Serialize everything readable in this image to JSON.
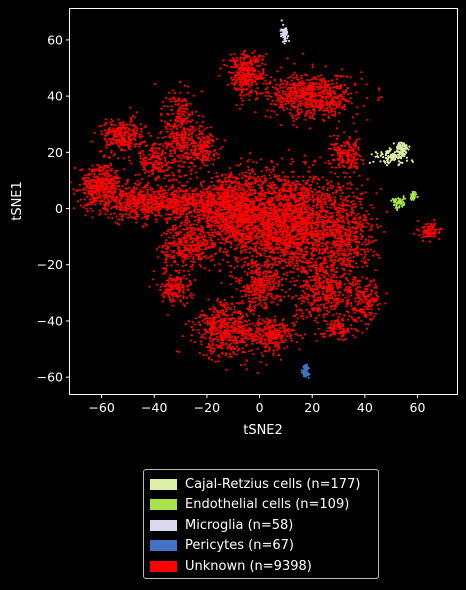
{
  "chart_data": {
    "type": "scatter",
    "title": "",
    "xlabel": "tSNE2",
    "ylabel": "tSNE1",
    "xlim": [
      -72,
      75
    ],
    "ylim": [
      -66,
      71
    ],
    "xticks": [
      -60,
      -40,
      -20,
      0,
      20,
      40,
      60
    ],
    "yticks": [
      -60,
      -40,
      -20,
      0,
      20,
      40,
      60
    ],
    "grid": false,
    "legend_position": "bottom-outside",
    "series": [
      {
        "name": "Cajal-Retzius cells (n=177)",
        "color": "#dcf0a6",
        "n": 177,
        "regions": [
          {
            "cx": 50,
            "cy": 18.5,
            "sx": 3.2,
            "sy": 1.3
          },
          {
            "cx": 54,
            "cy": 21,
            "sx": 1,
            "sy": 1.5
          }
        ]
      },
      {
        "name": "Endothelial cells (n=109)",
        "color": "#a8e34b",
        "n": 109,
        "regions": [
          {
            "cx": 53,
            "cy": 2,
            "sx": 1.2,
            "sy": 0.9
          },
          {
            "cx": 58.5,
            "cy": 4.5,
            "sx": 0.5,
            "sy": 0.6
          }
        ]
      },
      {
        "name": "Microglia (n=58)",
        "color": "#d8d8ee",
        "n": 58,
        "regions": [
          {
            "cx": 9.5,
            "cy": 62.5,
            "sx": 0.7,
            "sy": 1.5
          }
        ]
      },
      {
        "name": "Pericytes (n=67)",
        "color": "#4472c4",
        "n": 67,
        "regions": [
          {
            "cx": 17.5,
            "cy": -58,
            "sx": 0.6,
            "sy": 1.1
          }
        ]
      },
      {
        "name": "Unknown (n=9398)",
        "color": "#ff0000",
        "n": 9398,
        "regions": [
          {
            "cx": 10,
            "cy": -5,
            "sx": 12,
            "sy": 9,
            "w": 26
          },
          {
            "cx": -10,
            "cy": 0,
            "sx": 8,
            "sy": 6,
            "w": 10
          },
          {
            "cx": -30,
            "cy": 2,
            "sx": 10,
            "sy": 3,
            "w": 7
          },
          {
            "cx": -47,
            "cy": 2,
            "sx": 5,
            "sy": 3,
            "w": 3
          },
          {
            "cx": -60,
            "cy": 8,
            "sx": 4,
            "sy": 4,
            "w": 5
          },
          {
            "cx": -52,
            "cy": 26,
            "sx": 4,
            "sy": 3,
            "w": 3
          },
          {
            "cx": -40,
            "cy": 17,
            "sx": 3,
            "sy": 4,
            "w": 2
          },
          {
            "cx": -30,
            "cy": 27,
            "sx": 3,
            "sy": 8,
            "w": 4
          },
          {
            "cx": -22,
            "cy": 22,
            "sx": 3,
            "sy": 3,
            "w": 2
          },
          {
            "cx": -5,
            "cy": 48,
            "sx": 3.5,
            "sy": 4,
            "w": 4
          },
          {
            "cx": 20,
            "cy": 40,
            "sx": 8,
            "sy": 4,
            "w": 8
          },
          {
            "cx": 33,
            "cy": 19,
            "sx": 3,
            "sy": 3,
            "w": 2
          },
          {
            "cx": -27,
            "cy": -13,
            "sx": 5,
            "sy": 4,
            "w": 4
          },
          {
            "cx": -32,
            "cy": -28,
            "sx": 3,
            "sy": 3,
            "w": 2
          },
          {
            "cx": -12,
            "cy": -43,
            "sx": 6,
            "sy": 5,
            "w": 6
          },
          {
            "cx": 5,
            "cy": -45,
            "sx": 4,
            "sy": 3,
            "w": 3
          },
          {
            "cx": 0,
            "cy": -28,
            "sx": 4,
            "sy": 4,
            "w": 3
          },
          {
            "cx": 25,
            "cy": -30,
            "sx": 6,
            "sy": 6,
            "w": 5
          },
          {
            "cx": 40,
            "cy": -32,
            "sx": 3,
            "sy": 4,
            "w": 2
          },
          {
            "cx": 33,
            "cy": -10,
            "sx": 5,
            "sy": 8,
            "w": 5
          },
          {
            "cx": 65,
            "cy": -8,
            "sx": 2,
            "sy": 1.5,
            "w": 1
          },
          {
            "cx": 30,
            "cy": -43,
            "sx": 3,
            "sy": 2,
            "w": 1
          }
        ]
      }
    ]
  }
}
